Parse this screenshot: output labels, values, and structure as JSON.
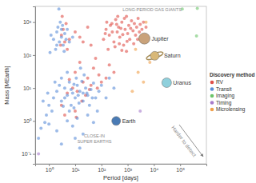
{
  "chart_data": {
    "type": "scatter",
    "log": true,
    "grid": false,
    "legend": "right",
    "legend_title": "Discovery method",
    "xlabel": "Period [days]",
    "ylabel": "Mass [MEarth]",
    "xlim": [
      0.3,
      1000000
    ],
    "ylim": [
      0.05,
      3000
    ],
    "xticks": [
      {
        "value": 1,
        "label": "10⁰"
      },
      {
        "value": 10,
        "label": "10¹"
      },
      {
        "value": 100,
        "label": "10²"
      },
      {
        "value": 1000,
        "label": "10³"
      },
      {
        "value": 10000,
        "label": "10⁴"
      },
      {
        "value": 100000,
        "label": "10⁵"
      }
    ],
    "yticks": [
      {
        "value": 0.1,
        "label": "10⁻¹"
      },
      {
        "value": 1,
        "label": "10⁰"
      },
      {
        "value": 10,
        "label": "10¹"
      },
      {
        "value": 100,
        "label": "10²"
      },
      {
        "value": 1000,
        "label": "10³"
      }
    ],
    "annotations": [
      "LONG-PERIOD GAS GIANTS",
      "CLOSE-IN",
      "SUPER EARTHS",
      "Harder to detect"
    ],
    "solar_system": [
      {
        "name": "Jupiter",
        "period": 4333,
        "mass": 318,
        "color": "#c9a27a"
      },
      {
        "name": "Saturn",
        "period": 10759,
        "mass": 95,
        "color": "#d8b878",
        "marker": "ringed"
      },
      {
        "name": "Uranus",
        "period": 30687,
        "mass": 14.5,
        "color": "#8fd0dc"
      },
      {
        "name": "Earth",
        "period": 365,
        "mass": 1,
        "color": "#4a7bb5"
      }
    ],
    "series": [
      {
        "name": "RV",
        "color": "#e0504a",
        "x": [
          120,
          150,
          200,
          250,
          300,
          350,
          400,
          450,
          500,
          600,
          700,
          800,
          900,
          1000,
          1100,
          1200,
          1400,
          1600,
          1800,
          2000,
          2200,
          2500,
          2800,
          3000,
          3500,
          4000,
          180,
          220,
          330,
          420,
          550,
          650,
          750,
          950,
          1300,
          1700,
          2400,
          260,
          380,
          480,
          160,
          140,
          5000,
          900,
          600,
          3,
          4,
          3.5,
          5,
          4.5,
          3.2,
          6,
          2.8,
          10,
          15,
          20,
          30,
          40,
          10,
          20,
          15,
          30,
          50,
          40,
          80,
          60,
          100,
          8,
          12,
          25,
          5,
          200,
          300,
          150,
          70,
          6,
          18,
          35,
          3,
          10,
          4,
          11
        ],
        "values": [
          300,
          600,
          400,
          900,
          250,
          1200,
          500,
          700,
          350,
          1000,
          200,
          600,
          1500,
          450,
          800,
          300,
          1100,
          550,
          900,
          400,
          700,
          1300,
          500,
          850,
          600,
          1000,
          150,
          800,
          180,
          1500,
          650,
          420,
          1300,
          260,
          650,
          220,
          300,
          500,
          850,
          220,
          1000,
          450,
          700,
          130,
          140,
          400,
          250,
          600,
          150,
          900,
          1500,
          300,
          200,
          500,
          350,
          250,
          700,
          200,
          30,
          15,
          60,
          20,
          40,
          12,
          25,
          80,
          15,
          10,
          8,
          6,
          7,
          50,
          30,
          20,
          10,
          18,
          4,
          9,
          3,
          2,
          1.5,
          1.3
        ]
      },
      {
        "name": "Transit",
        "color": "#5b8ed8",
        "x": [
          1.5,
          2,
          2.5,
          3,
          3.5,
          4,
          2.2,
          1.8,
          3.3,
          4.5,
          5,
          2.7,
          1.2,
          6,
          3.8,
          2.4,
          1.1,
          8,
          2,
          3,
          1,
          1.5,
          2,
          3,
          4,
          5,
          6,
          8,
          10,
          12,
          15,
          20,
          25,
          30,
          40,
          50,
          60,
          80,
          100,
          3,
          5,
          7,
          9,
          11,
          14,
          18,
          22,
          28,
          35,
          45,
          2.5,
          1.3,
          0.8,
          0.6,
          0.9,
          1.7,
          16,
          13,
          7,
          9,
          4,
          6,
          3.5,
          20,
          200,
          300,
          150,
          0.5,
          1,
          2,
          5,
          8,
          12,
          20,
          30,
          0.4,
          3,
          10,
          50,
          70,
          15,
          0.7
        ],
        "values": [
          300,
          500,
          250,
          350,
          200,
          450,
          700,
          150,
          800,
          300,
          600,
          1000,
          400,
          250,
          130,
          2500,
          120,
          350,
          200,
          600,
          3,
          5,
          8,
          4,
          10,
          6,
          15,
          7,
          5,
          12,
          8,
          4,
          10,
          6,
          9,
          14,
          5,
          8,
          12,
          20,
          30,
          3,
          2.5,
          20,
          3.5,
          16,
          25,
          7,
          3,
          5,
          12,
          2,
          1.5,
          4,
          7,
          15,
          40,
          6,
          9,
          13,
          5,
          2,
          2.8,
          7,
          20,
          10,
          5,
          0.6,
          0.8,
          0.5,
          1,
          0.7,
          1.2,
          0.4,
          1.5,
          0.3,
          0.2,
          0.3,
          0.9,
          2,
          0.15,
          0.9
        ]
      },
      {
        "name": "Imaging",
        "color": "#6cc46a",
        "x": [
          120000,
          450000,
          420000
        ],
        "values": [
          2500,
          2600,
          380
        ]
      },
      {
        "name": "Timing",
        "color": "#a77bcb",
        "x": [
          3000,
          0.4
        ],
        "values": [
          2,
          0.1
        ]
      },
      {
        "name": "Microlensing",
        "color": "#f0a04b",
        "x": [
          2500,
          3000,
          4000,
          1500,
          5000,
          2000,
          7000
        ],
        "values": [
          30,
          300,
          15,
          8,
          1000,
          150,
          60
        ]
      }
    ]
  }
}
